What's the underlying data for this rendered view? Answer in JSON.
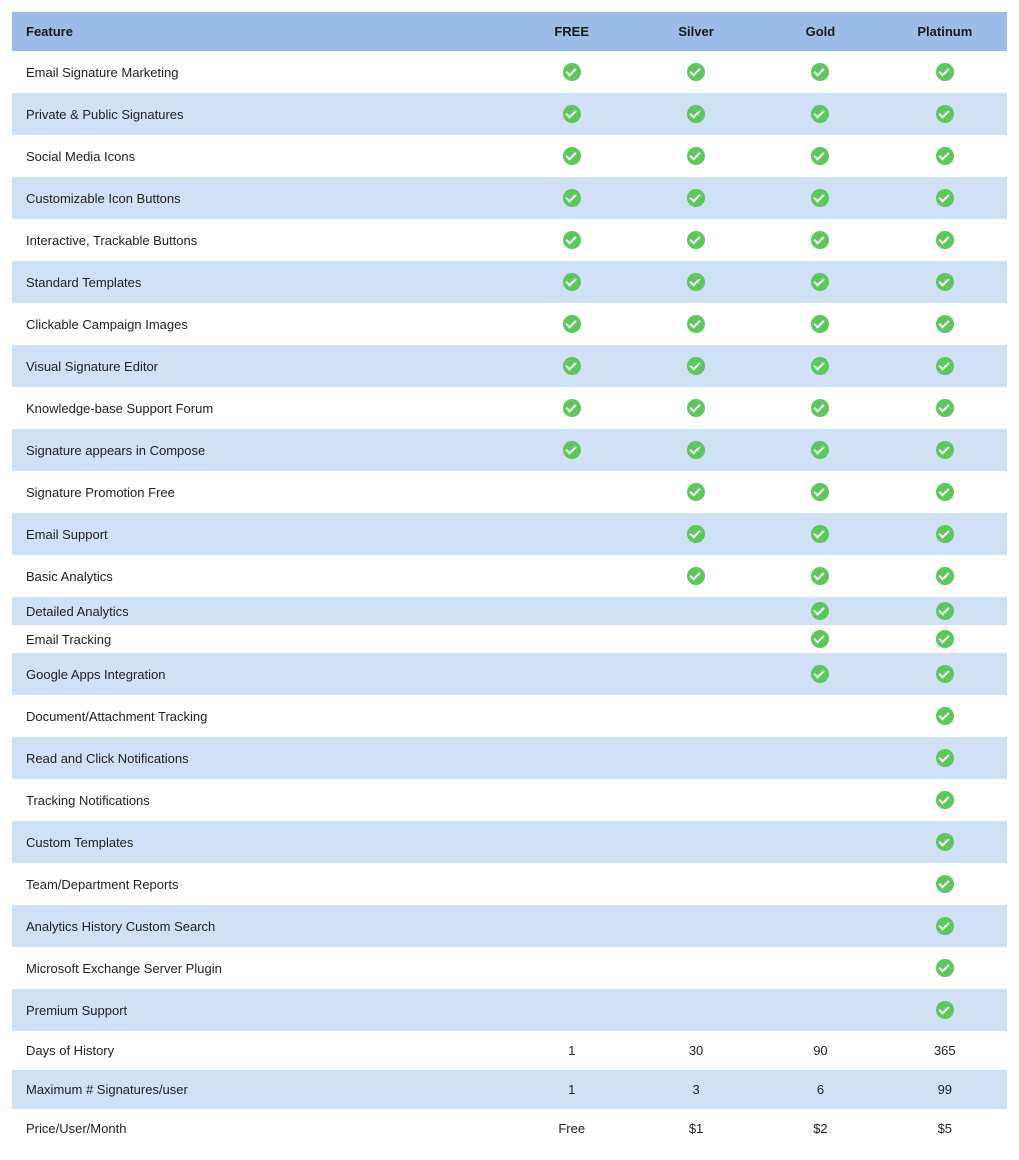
{
  "table": {
    "type": "feature-comparison-table",
    "colors": {
      "header_bg": "#9bbce7",
      "row_even_bg": "#ffffff",
      "row_odd_bg": "#cfe0f7",
      "check_bg": "#5cc85c",
      "check_tick": "#ffffff",
      "text": "#222222"
    },
    "columns": [
      {
        "key": "feature",
        "label": "Feature",
        "align": "left"
      },
      {
        "key": "free",
        "label": "FREE",
        "align": "center"
      },
      {
        "key": "silver",
        "label": "Silver",
        "align": "center"
      },
      {
        "key": "gold",
        "label": "Gold",
        "align": "center"
      },
      {
        "key": "platinum",
        "label": "Platinum",
        "align": "center"
      }
    ],
    "rows": [
      {
        "feature": "Email Signature Marketing",
        "free": "check",
        "silver": "check",
        "gold": "check",
        "platinum": "check"
      },
      {
        "feature": "Private & Public Signatures",
        "free": "check",
        "silver": "check",
        "gold": "check",
        "platinum": "check"
      },
      {
        "feature": "Social Media Icons",
        "free": "check",
        "silver": "check",
        "gold": "check",
        "platinum": "check"
      },
      {
        "feature": "Customizable Icon Buttons",
        "free": "check",
        "silver": "check",
        "gold": "check",
        "platinum": "check"
      },
      {
        "feature": "Interactive, Trackable Buttons",
        "free": "check",
        "silver": "check",
        "gold": "check",
        "platinum": "check"
      },
      {
        "feature": "Standard Templates",
        "free": "check",
        "silver": "check",
        "gold": "check",
        "platinum": "check"
      },
      {
        "feature": "Clickable Campaign Images",
        "free": "check",
        "silver": "check",
        "gold": "check",
        "platinum": "check"
      },
      {
        "feature": "Visual Signature Editor",
        "free": "check",
        "silver": "check",
        "gold": "check",
        "platinum": "check"
      },
      {
        "feature": "Knowledge-base Support Forum",
        "free": "check",
        "silver": "check",
        "gold": "check",
        "platinum": "check"
      },
      {
        "feature": "Signature appears in Compose",
        "free": "check",
        "silver": "check",
        "gold": "check",
        "platinum": "check"
      },
      {
        "feature": "Signature Promotion Free",
        "free": "",
        "silver": "check",
        "gold": "check",
        "platinum": "check"
      },
      {
        "feature": "Email Support",
        "free": "",
        "silver": "check",
        "gold": "check",
        "platinum": "check"
      },
      {
        "feature": "Basic Analytics",
        "free": "",
        "silver": "check",
        "gold": "check",
        "platinum": "check"
      },
      {
        "feature": "Detailed Analytics",
        "free": "",
        "silver": "",
        "gold": "check",
        "platinum": "check",
        "short": true
      },
      {
        "feature": "Email Tracking",
        "free": "",
        "silver": "",
        "gold": "check",
        "platinum": "check",
        "short": true
      },
      {
        "feature": "Google Apps Integration",
        "free": "",
        "silver": "",
        "gold": "check",
        "platinum": "check"
      },
      {
        "feature": "Document/Attachment Tracking",
        "free": "",
        "silver": "",
        "gold": "",
        "platinum": "check"
      },
      {
        "feature": "Read and Click Notifications",
        "free": "",
        "silver": "",
        "gold": "",
        "platinum": "check"
      },
      {
        "feature": "Tracking Notifications",
        "free": "",
        "silver": "",
        "gold": "",
        "platinum": "check"
      },
      {
        "feature": "Custom Templates",
        "free": "",
        "silver": "",
        "gold": "",
        "platinum": "check"
      },
      {
        "feature": "Team/Department Reports",
        "free": "",
        "silver": "",
        "gold": "",
        "platinum": "check"
      },
      {
        "feature": "Analytics History Custom Search",
        "free": "",
        "silver": "",
        "gold": "",
        "platinum": "check"
      },
      {
        "feature": "Microsoft Exchange Server Plugin",
        "free": "",
        "silver": "",
        "gold": "",
        "platinum": "check"
      },
      {
        "feature": "Premium Support",
        "free": "",
        "silver": "",
        "gold": "",
        "platinum": "check"
      },
      {
        "feature": "Days of History",
        "free": "1",
        "silver": "30",
        "gold": "90",
        "platinum": "365"
      },
      {
        "feature": "Maximum # Signatures/user",
        "free": "1",
        "silver": "3",
        "gold": "6",
        "platinum": "99"
      },
      {
        "feature": "Price/User/Month",
        "free": "Free",
        "silver": "$1",
        "gold": "$2",
        "platinum": "$5"
      }
    ]
  }
}
